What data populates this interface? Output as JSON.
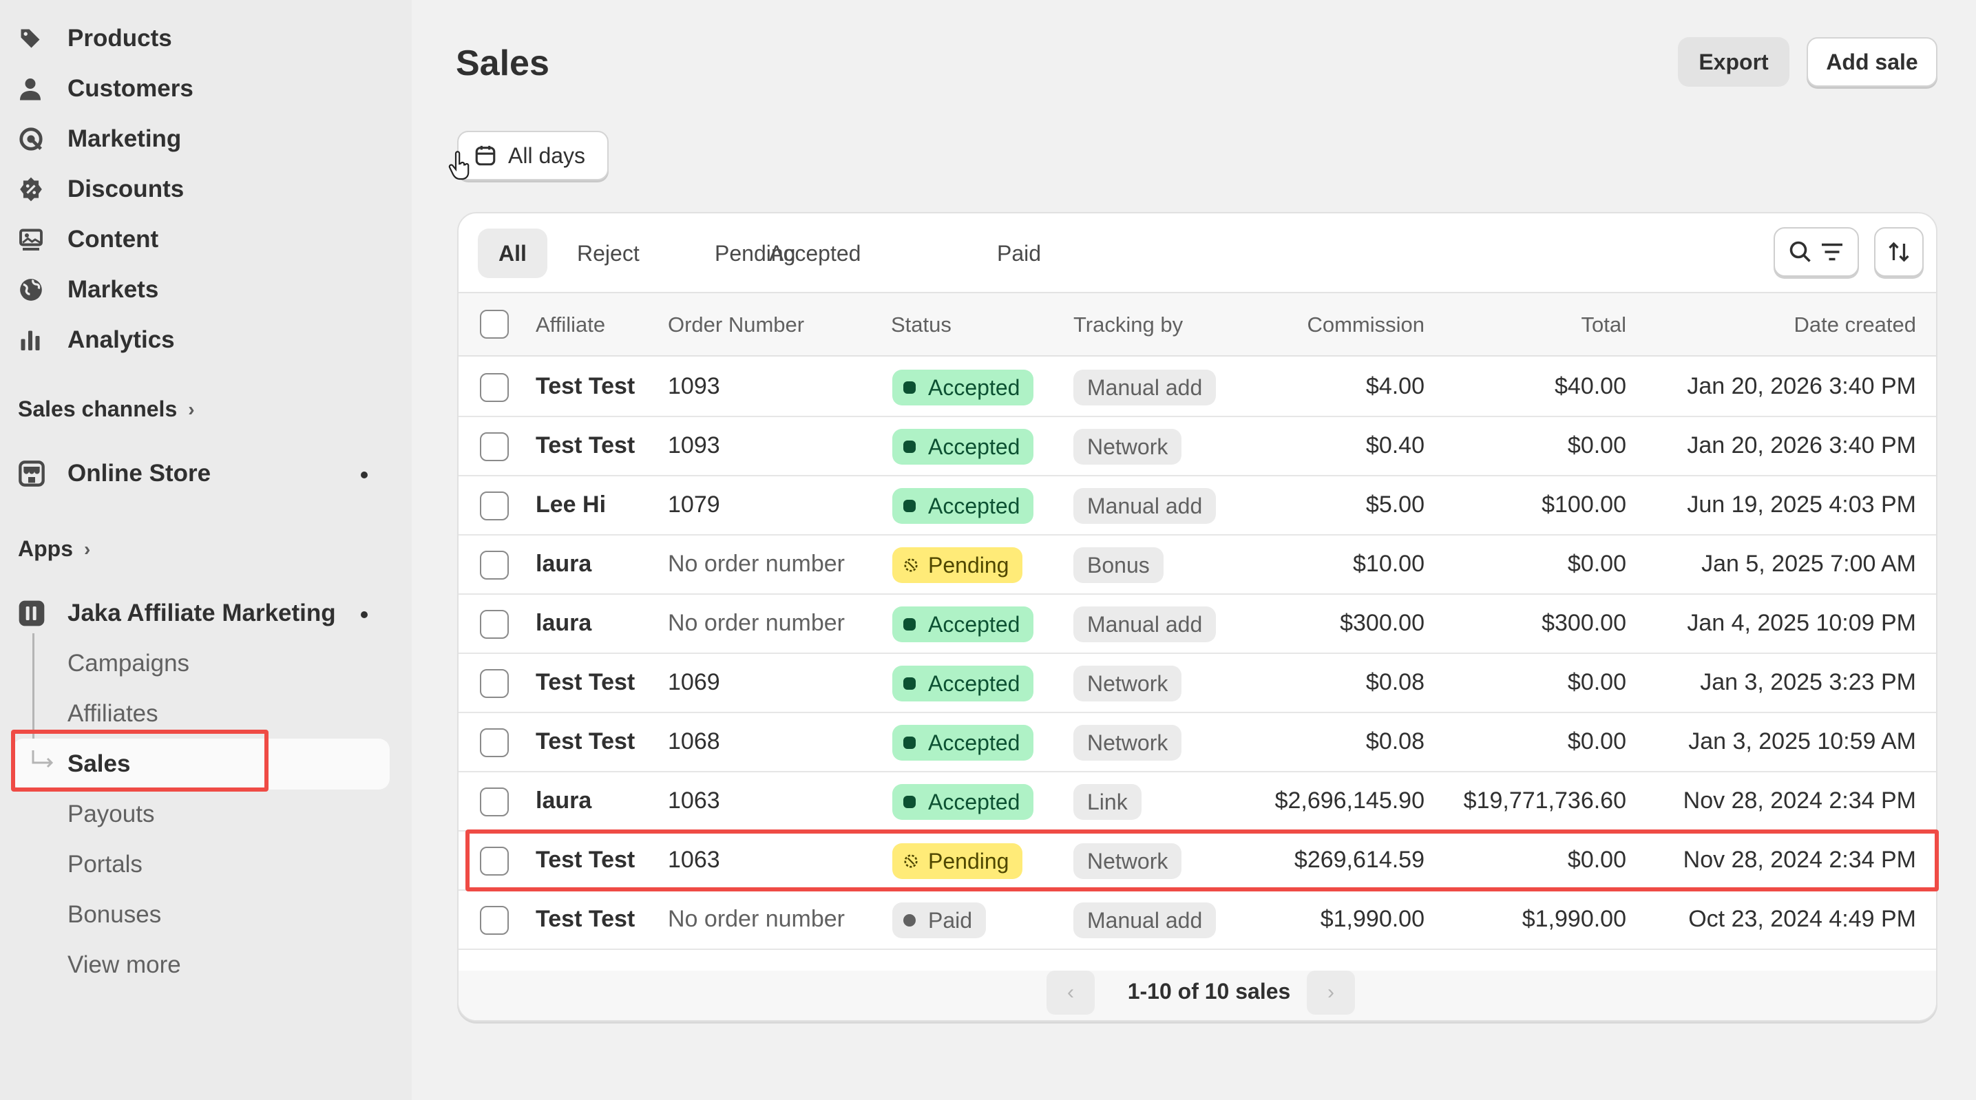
{
  "sidebar": {
    "nav": [
      {
        "label": "Products",
        "icon": "tag-icon"
      },
      {
        "label": "Customers",
        "icon": "person-icon"
      },
      {
        "label": "Marketing",
        "icon": "target-icon"
      },
      {
        "label": "Discounts",
        "icon": "discount-icon"
      },
      {
        "label": "Content",
        "icon": "image-icon"
      },
      {
        "label": "Markets",
        "icon": "globe-icon"
      },
      {
        "label": "Analytics",
        "icon": "bar-chart-icon"
      }
    ],
    "sales_channels_label": "Sales channels",
    "online_store_label": "Online Store",
    "apps_label": "Apps",
    "app_name": "Jaka Affiliate Marketing",
    "app_items": [
      "Campaigns",
      "Affiliates",
      "Sales",
      "Payouts",
      "Portals",
      "Bonuses",
      "View more"
    ]
  },
  "page": {
    "title": "Sales",
    "export_label": "Export",
    "add_sale_label": "Add sale",
    "date_filter_label": "All days"
  },
  "tabs": [
    "All",
    "Reject",
    "Pending",
    "Accepted",
    "Paid"
  ],
  "table": {
    "headers": {
      "affiliate": "Affiliate",
      "order": "Order Number",
      "status": "Status",
      "tracking": "Tracking by",
      "commission": "Commission",
      "total": "Total",
      "date": "Date created"
    },
    "rows": [
      {
        "affiliate": "Test Test",
        "order": "1093",
        "status": "Accepted",
        "tracking": "Manual add",
        "commission": "$4.00",
        "total": "$40.00",
        "date": "Jan 20, 2026 3:40 PM"
      },
      {
        "affiliate": "Test Test",
        "order": "1093",
        "status": "Accepted",
        "tracking": "Network",
        "commission": "$0.40",
        "total": "$0.00",
        "date": "Jan 20, 2026 3:40 PM"
      },
      {
        "affiliate": "Lee Hi",
        "order": "1079",
        "status": "Accepted",
        "tracking": "Manual add",
        "commission": "$5.00",
        "total": "$100.00",
        "date": "Jun 19, 2025 4:03 PM"
      },
      {
        "affiliate": "laura",
        "order": "No order number",
        "status": "Pending",
        "tracking": "Bonus",
        "commission": "$10.00",
        "total": "$0.00",
        "date": "Jan 5, 2025 7:00 AM"
      },
      {
        "affiliate": "laura",
        "order": "No order number",
        "status": "Accepted",
        "tracking": "Manual add",
        "commission": "$300.00",
        "total": "$300.00",
        "date": "Jan 4, 2025 10:09 PM"
      },
      {
        "affiliate": "Test Test",
        "order": "1069",
        "status": "Accepted",
        "tracking": "Network",
        "commission": "$0.08",
        "total": "$0.00",
        "date": "Jan 3, 2025 3:23 PM"
      },
      {
        "affiliate": "Test Test",
        "order": "1068",
        "status": "Accepted",
        "tracking": "Network",
        "commission": "$0.08",
        "total": "$0.00",
        "date": "Jan 3, 2025 10:59 AM"
      },
      {
        "affiliate": "laura",
        "order": "1063",
        "status": "Accepted",
        "tracking": "Link",
        "commission": "$2,696,145.90",
        "total": "$19,771,736.60",
        "date": "Nov 28, 2024 2:34 PM"
      },
      {
        "affiliate": "Test Test",
        "order": "1063",
        "status": "Pending",
        "tracking": "Network",
        "commission": "$269,614.59",
        "total": "$0.00",
        "date": "Nov 28, 2024 2:34 PM"
      },
      {
        "affiliate": "Test Test",
        "order": "No order number",
        "status": "Paid",
        "tracking": "Manual add",
        "commission": "$1,990.00",
        "total": "$1,990.00",
        "date": "Oct 23, 2024 4:49 PM"
      }
    ]
  },
  "pagination": {
    "label": "1-10 of 10 sales"
  },
  "colors": {
    "highlight": "#ef4b45",
    "accepted_bg": "#aff2c6",
    "pending_bg": "#ffeb78"
  }
}
